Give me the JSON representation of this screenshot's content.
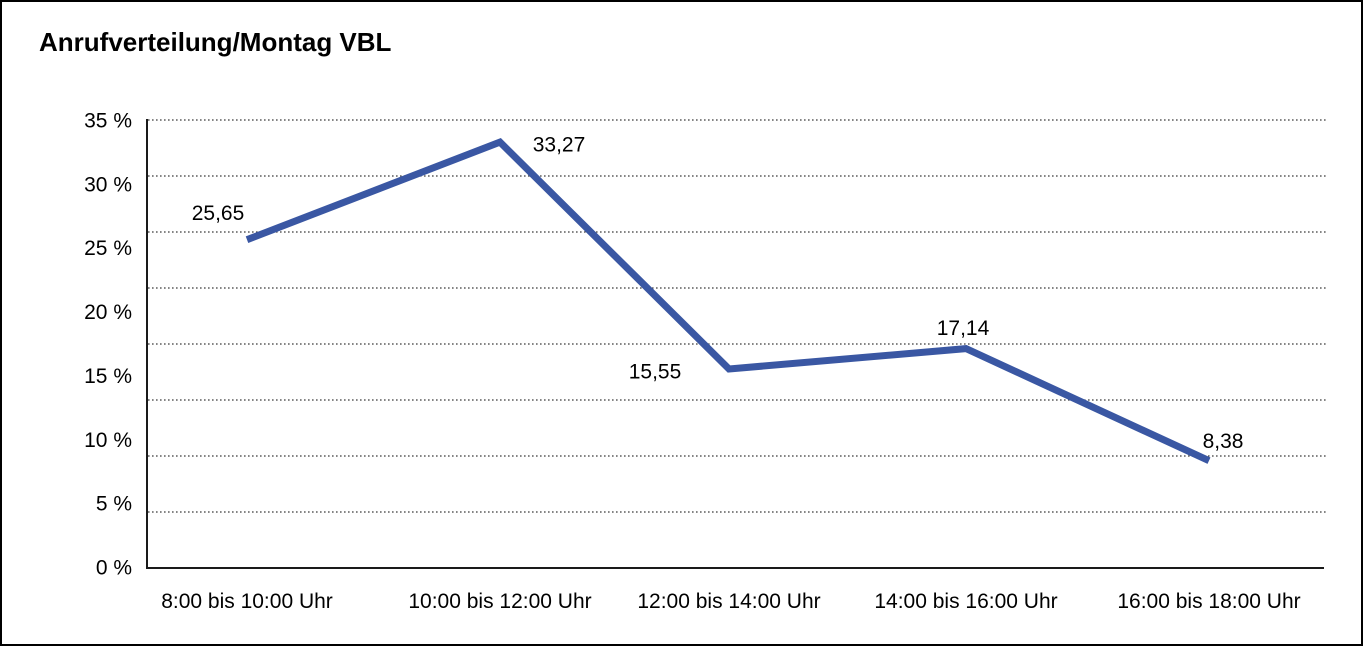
{
  "chart_data": {
    "type": "line",
    "title": "Anrufverteilung/Montag VBL",
    "categories": [
      "8:00 bis 10:00 Uhr",
      "10:00 bis 12:00 Uhr",
      "12:00 bis 14:00 Uhr",
      "14:00 bis 16:00 Uhr",
      "16:00 bis 18:00 Uhr"
    ],
    "values": [
      25.65,
      33.27,
      15.55,
      17.14,
      8.38
    ],
    "value_labels": [
      "25,65",
      "33,27",
      "15,55",
      "17,14",
      "8,38"
    ],
    "y_tick_labels": [
      "35 %",
      "30 %",
      "25 %",
      "20 %",
      "15 %",
      "10 %",
      "5 %",
      "0 %"
    ],
    "ylim": [
      0,
      35
    ],
    "xlabel": "",
    "ylabel": "",
    "legend": "none",
    "grid": "horizontal-dotted",
    "line_color": "#3A57A3",
    "axis_color": "#1a1a1a",
    "grid_color": "#3c3c3c",
    "text_color": "#000000",
    "background_color": "#ffffff"
  }
}
